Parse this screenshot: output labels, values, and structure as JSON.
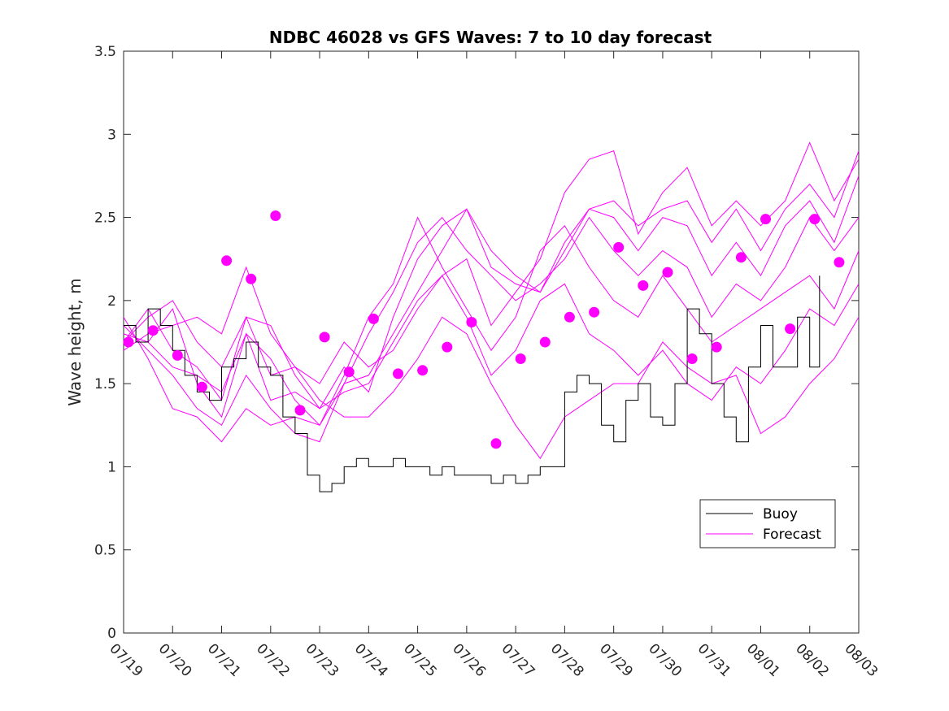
{
  "chart_data": {
    "type": "line",
    "title": "NDBC 46028 vs GFS Waves: 7 to 10 day forecast",
    "xlabel": "",
    "ylabel": "Wave height, m",
    "xlim": [
      "07/19",
      "08/03"
    ],
    "ylim": [
      0,
      3.5
    ],
    "x_tick_labels": [
      "07/19",
      "07/20",
      "07/21",
      "07/22",
      "07/23",
      "07/24",
      "07/25",
      "07/26",
      "07/27",
      "07/28",
      "07/29",
      "07/30",
      "07/31",
      "08/01",
      "08/02",
      "08/03"
    ],
    "y_ticks": [
      0,
      0.5,
      1,
      1.5,
      2,
      2.5,
      3,
      3.5
    ],
    "y_tick_labels": [
      "0",
      "0.5",
      "1",
      "1.5",
      "2",
      "2.5",
      "3",
      "3.5"
    ],
    "grid": false,
    "legend": {
      "position": "lower-right",
      "entries": [
        "Buoy",
        "Forecast"
      ]
    },
    "colors": {
      "buoy": "#000000",
      "forecast": "#ff00ff"
    },
    "series": [
      {
        "name": "Buoy",
        "x_days": [
          0,
          0.25,
          0.5,
          0.75,
          1.0,
          1.25,
          1.5,
          1.75,
          2.0,
          2.25,
          2.5,
          2.75,
          3.0,
          3.25,
          3.5,
          3.75,
          4.0,
          4.25,
          4.5,
          4.75,
          5.0,
          5.25,
          5.5,
          5.75,
          6.0,
          6.25,
          6.5,
          6.75,
          7.0,
          7.25,
          7.5,
          7.75,
          8.0,
          8.25,
          8.5,
          8.75,
          9.0,
          9.25,
          9.5,
          9.75,
          10.0,
          10.25,
          10.5,
          10.75,
          11.0,
          11.25,
          11.5,
          11.75,
          12.0,
          12.25,
          12.5,
          12.75,
          13.0,
          13.25,
          13.5,
          13.75,
          14.0,
          14.2
        ],
        "values": [
          1.85,
          1.75,
          1.95,
          1.85,
          1.7,
          1.55,
          1.45,
          1.4,
          1.6,
          1.65,
          1.75,
          1.6,
          1.55,
          1.3,
          1.2,
          0.95,
          0.85,
          0.9,
          1.0,
          1.05,
          1.0,
          1.0,
          1.05,
          1.0,
          1.0,
          0.95,
          1.0,
          0.95,
          0.95,
          0.95,
          0.9,
          0.95,
          0.9,
          0.95,
          1.0,
          1.0,
          1.45,
          1.55,
          1.5,
          1.25,
          1.15,
          1.4,
          1.5,
          1.3,
          1.25,
          1.5,
          1.95,
          1.8,
          1.5,
          1.3,
          1.15,
          1.6,
          1.85,
          1.6,
          1.6,
          1.9,
          1.6,
          2.15
        ]
      },
      {
        "name": "Forecast",
        "lines": [
          {
            "x_days": [
              0,
              0.5,
              1,
              1.5,
              2,
              2.5,
              3,
              3.5,
              4,
              4.5,
              5,
              5.5,
              6,
              6.5,
              7,
              7.5,
              8,
              8.5,
              9,
              9.5,
              10,
              10.5,
              11,
              11.5,
              12,
              12.5,
              13,
              13.5,
              14,
              14.5,
              15
            ],
            "values": [
              1.75,
              1.9,
              2.0,
              1.75,
              1.6,
              1.9,
              1.85,
              1.55,
              1.35,
              1.6,
              1.45,
              1.9,
              2.25,
              2.45,
              2.55,
              2.2,
              2.1,
              2.05,
              2.35,
              2.55,
              2.6,
              2.45,
              2.55,
              2.6,
              2.35,
              2.55,
              2.3,
              2.55,
              2.7,
              2.5,
              2.9
            ]
          },
          {
            "x_days": [
              0,
              0.5,
              1,
              1.5,
              2,
              2.5,
              3,
              3.5,
              4,
              4.5,
              5,
              5.5,
              6,
              6.5,
              7,
              7.5,
              8,
              8.5,
              9,
              9.5,
              10,
              10.5,
              11,
              11.5,
              12,
              12.5,
              13,
              13.5,
              14,
              14.5,
              15
            ],
            "values": [
              1.8,
              1.75,
              1.95,
              1.5,
              1.3,
              1.8,
              1.65,
              1.4,
              1.25,
              1.5,
              1.55,
              1.8,
              2.05,
              2.3,
              2.55,
              2.3,
              2.15,
              2.05,
              2.3,
              2.55,
              2.5,
              2.3,
              2.5,
              2.45,
              2.15,
              2.35,
              2.15,
              2.45,
              2.6,
              2.35,
              2.75
            ]
          },
          {
            "x_days": [
              0,
              0.5,
              1,
              1.5,
              2,
              2.5,
              3,
              3.5,
              4,
              4.5,
              5,
              5.5,
              6,
              6.5,
              7,
              7.5,
              8,
              8.5,
              9,
              9.5,
              10,
              10.5,
              11,
              11.5,
              12,
              12.5,
              13,
              13.5,
              14,
              14.5,
              15
            ],
            "values": [
              1.85,
              1.7,
              1.55,
              1.35,
              1.25,
              1.55,
              1.35,
              1.2,
              1.15,
              1.5,
              1.8,
              2.05,
              2.35,
              2.5,
              2.3,
              2.15,
              2.0,
              2.1,
              2.25,
              2.5,
              2.3,
              2.15,
              2.3,
              2.2,
              1.9,
              2.1,
              2.0,
              2.2,
              2.5,
              2.3,
              2.5
            ]
          },
          {
            "x_days": [
              0,
              0.5,
              1,
              1.5,
              2,
              2.5,
              3,
              3.5,
              4,
              4.5,
              5,
              5.5,
              6,
              6.5,
              7,
              7.5,
              8,
              8.5,
              9,
              9.5,
              10,
              10.5,
              11,
              11.5,
              12,
              12.5,
              13,
              13.5,
              14,
              14.5,
              15
            ],
            "values": [
              1.9,
              1.65,
              1.35,
              1.3,
              1.15,
              1.35,
              1.25,
              1.3,
              1.25,
              1.55,
              1.9,
              2.1,
              2.5,
              2.2,
              1.95,
              1.7,
              1.9,
              2.3,
              2.45,
              2.2,
              2.0,
              1.9,
              2.15,
              1.95,
              1.75,
              1.85,
              1.95,
              2.05,
              2.15,
              1.95,
              2.3
            ]
          },
          {
            "x_days": [
              0,
              0.5,
              1,
              1.5,
              2,
              2.5,
              3,
              3.5,
              4,
              4.5,
              5,
              5.5,
              6,
              6.5,
              7,
              7.5,
              8,
              8.5,
              9,
              9.5,
              10,
              10.5,
              11,
              11.5,
              12,
              12.5,
              13,
              13.5,
              14,
              14.5,
              15
            ],
            "values": [
              1.8,
              1.75,
              1.6,
              1.55,
              1.45,
              1.8,
              1.4,
              1.45,
              1.35,
              1.45,
              1.5,
              1.75,
              2.0,
              2.15,
              1.9,
              1.55,
              1.7,
              2.0,
              2.1,
              1.8,
              1.7,
              1.55,
              1.7,
              1.5,
              1.4,
              1.6,
              1.5,
              1.7,
              1.95,
              1.85,
              2.1
            ]
          },
          {
            "x_days": [
              0,
              0.5,
              1,
              1.5,
              2,
              2.5,
              3,
              3.5,
              4,
              4.5,
              5,
              5.5,
              6,
              6.5,
              7,
              7.5,
              8,
              8.5,
              9,
              9.5,
              10,
              10.5,
              11,
              11.5,
              12,
              12.5,
              13,
              13.5,
              14,
              14.5,
              15
            ],
            "values": [
              1.7,
              1.8,
              1.85,
              1.9,
              1.8,
              2.2,
              1.8,
              1.6,
              1.4,
              1.3,
              1.3,
              1.45,
              1.65,
              1.9,
              1.8,
              1.5,
              1.25,
              1.05,
              1.3,
              1.4,
              1.5,
              1.5,
              1.75,
              1.6,
              1.5,
              1.55,
              1.2,
              1.3,
              1.5,
              1.65,
              1.9
            ]
          },
          {
            "x_days": [
              0,
              0.5,
              1,
              1.5,
              2,
              2.5,
              3,
              3.5,
              4,
              4.5,
              5,
              5.5,
              6,
              6.5,
              7,
              7.5,
              8,
              8.5,
              9,
              9.5,
              10,
              10.5,
              11,
              11.5,
              12,
              12.5,
              13,
              13.5,
              14,
              14.5,
              15
            ],
            "values": [
              1.75,
              1.95,
              1.7,
              1.6,
              1.4,
              1.9,
              1.55,
              1.6,
              1.5,
              1.75,
              1.6,
              1.7,
              1.95,
              2.15,
              2.25,
              1.85,
              2.05,
              2.25,
              2.65,
              2.85,
              2.9,
              2.4,
              2.65,
              2.8,
              2.45,
              2.6,
              2.45,
              2.6,
              2.95,
              2.6,
              2.85
            ]
          }
        ]
      }
    ],
    "forecast_markers": {
      "x_days": [
        0.1,
        0.6,
        1.1,
        1.6,
        2.1,
        2.6,
        3.1,
        3.6,
        4.1,
        4.6,
        5.1,
        5.6,
        6.1,
        6.6,
        7.1,
        7.6,
        8.1,
        8.6,
        9.1,
        9.6,
        10.1,
        10.6,
        11.1,
        11.6,
        12.1,
        12.6,
        13.1,
        13.6,
        14.1,
        14.6
      ],
      "values": [
        1.75,
        1.82,
        1.67,
        1.48,
        2.24,
        2.13,
        2.51,
        1.34,
        1.78,
        1.57,
        1.89,
        1.56,
        1.58,
        1.72,
        1.87,
        1.14,
        1.65,
        1.75,
        1.9,
        1.93,
        2.32,
        2.09,
        2.17,
        1.65,
        1.72,
        2.26,
        2.49,
        1.83,
        2.49,
        2.23
      ]
    }
  }
}
